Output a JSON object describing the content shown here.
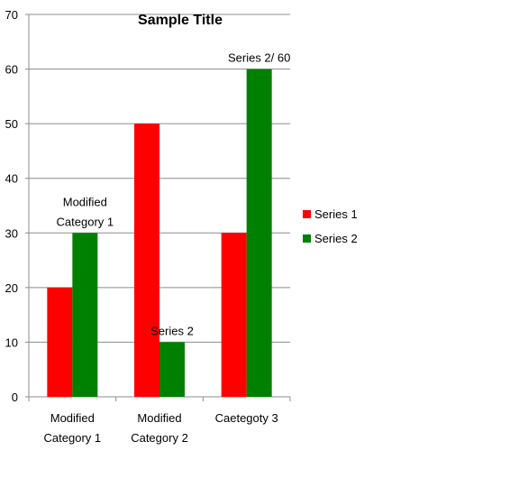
{
  "chart_data": {
    "type": "bar",
    "title": "Sample Title",
    "categories": [
      [
        "Modified",
        "Category 1"
      ],
      [
        "Modified",
        "Category 2"
      ],
      [
        "Caetegoty 3"
      ]
    ],
    "series": [
      {
        "name": "Series 1",
        "values": [
          20,
          50,
          30
        ],
        "color": "#ff0000"
      },
      {
        "name": "Series 2",
        "values": [
          30,
          10,
          60
        ],
        "color": "#008000"
      }
    ],
    "ylim": [
      0,
      70
    ],
    "yticks": [
      0,
      10,
      20,
      30,
      40,
      50,
      60,
      70
    ],
    "grid": true,
    "legend": "right",
    "data_labels": [
      {
        "category": 0,
        "series": 1,
        "lines": [
          "Modified",
          "Category 1"
        ]
      },
      {
        "category": 1,
        "series": 1,
        "lines": [
          "Series 2"
        ]
      },
      {
        "category": 2,
        "series": 1,
        "lines": [
          "Series 2/ 60"
        ]
      }
    ]
  }
}
